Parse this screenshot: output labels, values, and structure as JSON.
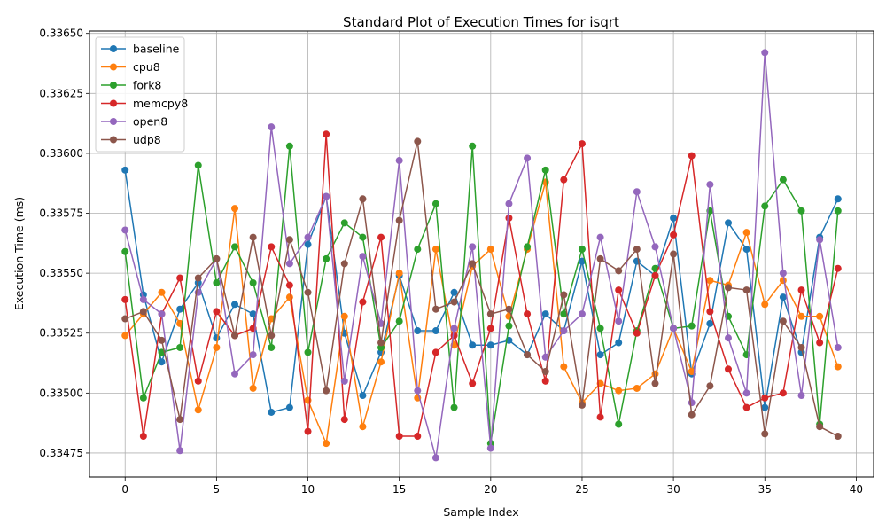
{
  "chart_data": {
    "type": "line",
    "title": "Standard Plot of Execution Times for isqrt",
    "xlabel": "Sample Index",
    "ylabel": "Execution Time (ms)",
    "xlim": [
      -1.95,
      40.95
    ],
    "ylim": [
      0.33465,
      0.33651
    ],
    "xticks": [
      0,
      5,
      10,
      15,
      20,
      25,
      30,
      35,
      40
    ],
    "xtick_labels": [
      "0",
      "5",
      "10",
      "15",
      "20",
      "25",
      "30",
      "35",
      "40"
    ],
    "yticks": [
      0.33475,
      0.335,
      0.33525,
      0.3355,
      0.33575,
      0.336,
      0.33625,
      0.3365
    ],
    "ytick_labels": [
      "0.33475",
      "0.33500",
      "0.33525",
      "0.33550",
      "0.33575",
      "0.33600",
      "0.33625",
      "0.33650"
    ],
    "grid": true,
    "legend_position": "top-left",
    "x": [
      0,
      1,
      2,
      3,
      4,
      5,
      6,
      7,
      8,
      9,
      10,
      11,
      12,
      13,
      14,
      15,
      16,
      17,
      18,
      19,
      20,
      21,
      22,
      23,
      24,
      25,
      26,
      27,
      28,
      29,
      30,
      31,
      32,
      33,
      34,
      35,
      36,
      37,
      38,
      39
    ],
    "series": [
      {
        "name": "baseline",
        "color": "#1f77b4",
        "values": [
          0.33593,
          0.33541,
          0.33513,
          0.33535,
          0.33546,
          0.33523,
          0.33537,
          0.33533,
          0.33492,
          0.33494,
          0.33562,
          0.33582,
          0.33525,
          0.33499,
          0.33517,
          0.33549,
          0.33526,
          0.33526,
          0.33542,
          0.3352,
          0.3352,
          0.33522,
          0.33516,
          0.33533,
          0.33526,
          0.33555,
          0.33516,
          0.33521,
          0.33555,
          0.33549,
          0.33573,
          0.33508,
          0.33529,
          0.33571,
          0.3356,
          0.33494,
          0.3354,
          0.33517,
          0.33565,
          0.33581
        ]
      },
      {
        "name": "cpu8",
        "color": "#ff7f0e",
        "values": [
          0.33524,
          0.33533,
          0.33542,
          0.33529,
          0.33493,
          0.33519,
          0.33577,
          0.33502,
          0.33531,
          0.3354,
          0.33497,
          0.33479,
          0.33532,
          0.33486,
          0.33513,
          0.3355,
          0.33498,
          0.3356,
          0.3352,
          0.33553,
          0.3356,
          0.33532,
          0.3356,
          0.33588,
          0.33511,
          0.33496,
          0.33504,
          0.33501,
          0.33502,
          0.33508,
          0.33527,
          0.33509,
          0.33547,
          0.33545,
          0.33567,
          0.33537,
          0.33547,
          0.33532,
          0.33532,
          0.33511
        ]
      },
      {
        "name": "fork8",
        "color": "#2ca02c",
        "values": [
          0.33559,
          0.33498,
          0.33517,
          0.33519,
          0.33595,
          0.33546,
          0.33561,
          0.33546,
          0.33519,
          0.33603,
          0.33517,
          0.33556,
          0.33571,
          0.33565,
          0.33519,
          0.3353,
          0.3356,
          0.33579,
          0.33494,
          0.33603,
          0.33479,
          0.33528,
          0.33561,
          0.33593,
          0.33533,
          0.3356,
          0.33527,
          0.33487,
          0.33526,
          0.33552,
          0.33527,
          0.33528,
          0.33576,
          0.33532,
          0.33516,
          0.33578,
          0.33589,
          0.33576,
          0.33487,
          0.33576
        ]
      },
      {
        "name": "memcpy8",
        "color": "#d62728",
        "values": [
          0.33539,
          0.33482,
          0.33533,
          0.33548,
          0.33505,
          0.33534,
          0.33524,
          0.33527,
          0.33561,
          0.33545,
          0.33484,
          0.33608,
          0.33489,
          0.33538,
          0.33565,
          0.33482,
          0.33482,
          0.33517,
          0.33524,
          0.33504,
          0.33527,
          0.33573,
          0.33533,
          0.33505,
          0.33589,
          0.33604,
          0.3349,
          0.33543,
          0.33525,
          0.33549,
          0.33566,
          0.33599,
          0.33534,
          0.3351,
          0.33494,
          0.33498,
          0.335,
          0.33543,
          0.33521,
          0.33552
        ]
      },
      {
        "name": "open8",
        "color": "#9467bd",
        "values": [
          0.33568,
          0.33539,
          0.33533,
          0.33476,
          0.33542,
          0.33556,
          0.33508,
          0.33516,
          0.33611,
          0.33554,
          0.33565,
          0.33582,
          0.33505,
          0.33557,
          0.33529,
          0.33597,
          0.33501,
          0.33473,
          0.33527,
          0.33561,
          0.33477,
          0.33579,
          0.33598,
          0.33515,
          0.33526,
          0.33533,
          0.33565,
          0.3353,
          0.33584,
          0.33561,
          0.33527,
          0.33496,
          0.33587,
          0.33523,
          0.335,
          0.33642,
          0.3355,
          0.33499,
          0.33564,
          0.33519
        ]
      },
      {
        "name": "udp8",
        "color": "#8c564b",
        "values": [
          0.33531,
          0.33534,
          0.33522,
          0.33489,
          0.33548,
          0.33556,
          0.33524,
          0.33565,
          0.33524,
          0.33564,
          0.33542,
          0.33501,
          0.33554,
          0.33581,
          0.33521,
          0.33572,
          0.33605,
          0.33535,
          0.33538,
          0.33554,
          0.33533,
          0.33535,
          0.33516,
          0.33509,
          0.33541,
          0.33495,
          0.33556,
          0.33551,
          0.3356,
          0.33504,
          0.33558,
          0.33491,
          0.33503,
          0.33544,
          0.33543,
          0.33483,
          0.3353,
          0.33519,
          0.33486,
          0.33482
        ]
      }
    ]
  }
}
